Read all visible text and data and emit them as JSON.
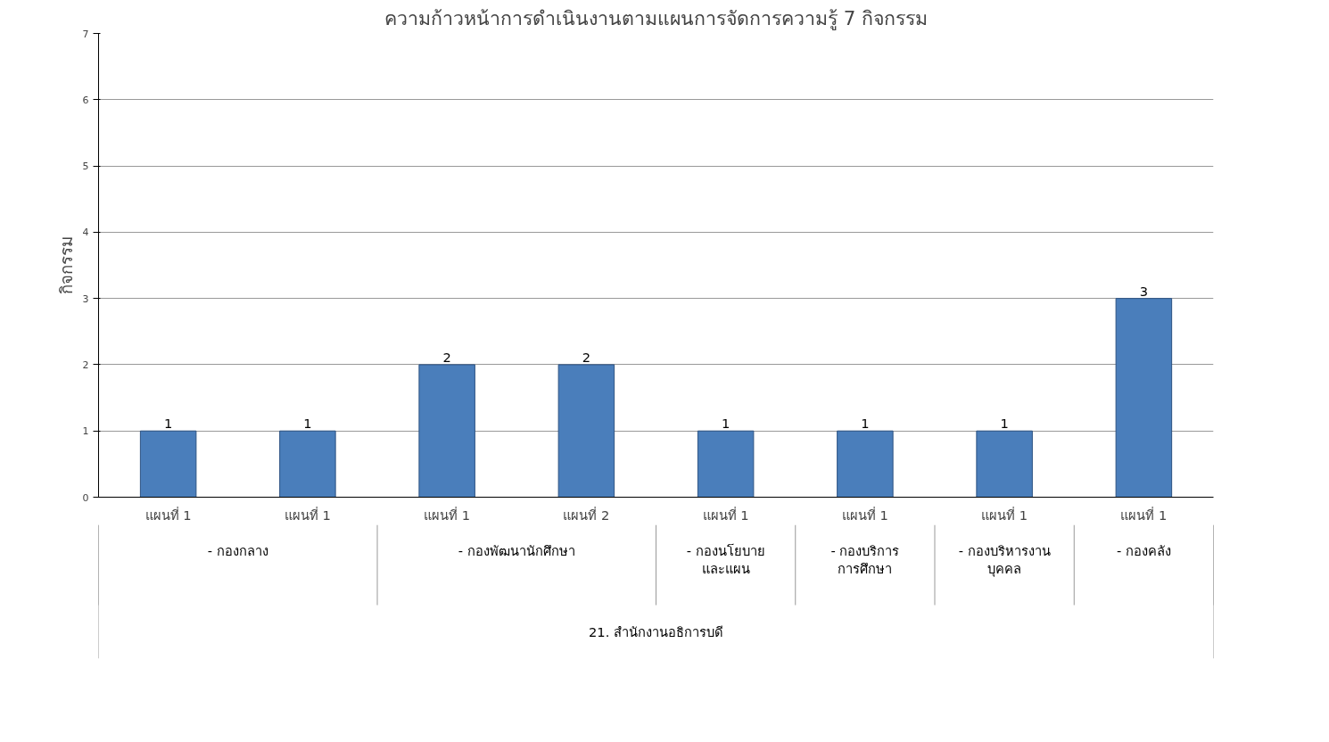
{
  "chart_data": {
    "type": "bar",
    "title": "ความก้าวหน้าการดำเนินงานตามแผนการจัดการความรู้ 7 กิจกรรม",
    "ylabel": "กิจกรรม",
    "categories": [
      "แผนที่ 1",
      "แผนที่ 1",
      "แผนที่ 1",
      "แผนที่ 2",
      "แผนที่ 1",
      "แผนที่ 1",
      "แผนที่ 1",
      "แผนที่ 1"
    ],
    "values": [
      1,
      1,
      2,
      2,
      1,
      1,
      1,
      3
    ],
    "color": "#4a7ebb",
    "ylim": [
      0,
      7
    ],
    "yticks": [
      0,
      1,
      2,
      3,
      4,
      5,
      6,
      7
    ],
    "grid": "y",
    "data_labels": true,
    "annotations": [
      "- กองกลาง",
      "- กองพัฒนานักศึกษา",
      "- กองนโยบาย\nและแผน",
      "- กองบริการ\nการศึกษา",
      "- กองบริหารงาน\nบุคคล",
      "- กองคลัง",
      "21. สำนักงานอธิการบดี"
    ]
  }
}
